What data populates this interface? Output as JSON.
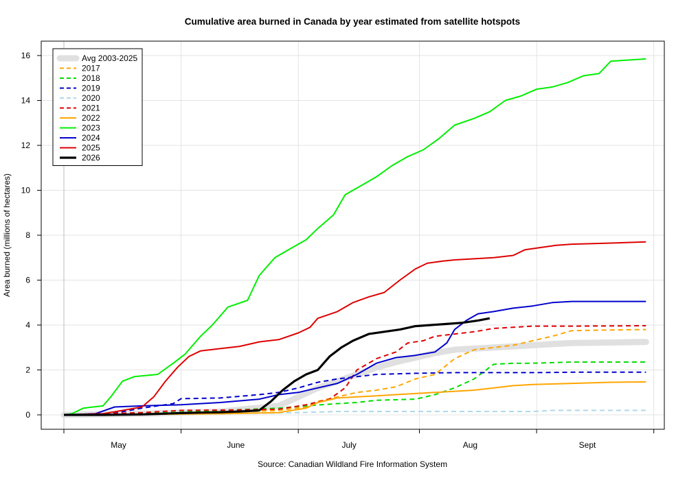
{
  "chart_data": {
    "type": "line",
    "title": "Cumulative area burned in Canada by year estimated from satellite hotspots",
    "ylabel": "Area burned (millions of hectares)",
    "source": "Source: Canadian Wildland Fire Information System",
    "xlim": [
      0,
      150
    ],
    "ylim": [
      -0.6,
      16.6
    ],
    "x_ticks": [
      0,
      30,
      60,
      91,
      121,
      151
    ],
    "x_tick_labels": [
      {
        "label": "May",
        "x": 14
      },
      {
        "label": "June",
        "x": 44
      },
      {
        "label": "July",
        "x": 73
      },
      {
        "label": "Aug",
        "x": 104
      },
      {
        "label": "Sept",
        "x": 134
      }
    ],
    "y_ticks": [
      0,
      2,
      4,
      6,
      8,
      10,
      12,
      14,
      16
    ],
    "x_units": "days since April 20",
    "legend_position": "top-left",
    "colors": {
      "avg": "#e0e0e0",
      "2017": "#ffa500",
      "2018": "#00dd00",
      "2019": "#0000cc",
      "2020": "#add8e6",
      "2021": "#dd0000",
      "2022": "#ffa500",
      "2023": "#00ee00",
      "2024": "#0000cc",
      "2025": "#dd0000",
      "2026": "#000000"
    },
    "series": [
      {
        "name": "Avg 2003-2025",
        "style": "thick",
        "color": "#e0e0e0",
        "points": [
          [
            0,
            0
          ],
          [
            20,
            0.05
          ],
          [
            40,
            0.15
          ],
          [
            55,
            0.4
          ],
          [
            60,
            0.8
          ],
          [
            65,
            1.2
          ],
          [
            70,
            1.5
          ],
          [
            75,
            1.8
          ],
          [
            80,
            2.1
          ],
          [
            85,
            2.35
          ],
          [
            90,
            2.55
          ],
          [
            95,
            2.75
          ],
          [
            100,
            2.9
          ],
          [
            105,
            2.95
          ],
          [
            110,
            3.0
          ],
          [
            115,
            3.05
          ],
          [
            120,
            3.1
          ],
          [
            125,
            3.15
          ],
          [
            130,
            3.2
          ],
          [
            140,
            3.22
          ],
          [
            149,
            3.25
          ]
        ]
      },
      {
        "name": "2017",
        "style": "dashed",
        "color": "#ffa500",
        "points": [
          [
            0,
            0
          ],
          [
            20,
            0.05
          ],
          [
            40,
            0.1
          ],
          [
            55,
            0.2
          ],
          [
            62,
            0.35
          ],
          [
            65,
            0.6
          ],
          [
            70,
            0.8
          ],
          [
            75,
            1.0
          ],
          [
            80,
            1.1
          ],
          [
            85,
            1.25
          ],
          [
            90,
            1.6
          ],
          [
            95,
            1.8
          ],
          [
            100,
            2.5
          ],
          [
            105,
            2.9
          ],
          [
            110,
            3.0
          ],
          [
            115,
            3.1
          ],
          [
            120,
            3.3
          ],
          [
            125,
            3.5
          ],
          [
            130,
            3.75
          ],
          [
            140,
            3.78
          ],
          [
            149,
            3.8
          ]
        ]
      },
      {
        "name": "2018",
        "style": "dashed",
        "color": "#00dd00",
        "points": [
          [
            0,
            0
          ],
          [
            20,
            0.05
          ],
          [
            40,
            0.2
          ],
          [
            55,
            0.3
          ],
          [
            62,
            0.4
          ],
          [
            70,
            0.5
          ],
          [
            75,
            0.55
          ],
          [
            80,
            0.65
          ],
          [
            90,
            0.7
          ],
          [
            95,
            0.9
          ],
          [
            100,
            1.2
          ],
          [
            105,
            1.6
          ],
          [
            110,
            2.25
          ],
          [
            115,
            2.3
          ],
          [
            120,
            2.3
          ],
          [
            130,
            2.35
          ],
          [
            140,
            2.35
          ],
          [
            149,
            2.35
          ]
        ]
      },
      {
        "name": "2019",
        "style": "dashed",
        "color": "#0000cc",
        "points": [
          [
            0,
            0
          ],
          [
            12,
            0.05
          ],
          [
            20,
            0.3
          ],
          [
            28,
            0.5
          ],
          [
            30,
            0.72
          ],
          [
            40,
            0.75
          ],
          [
            50,
            0.9
          ],
          [
            55,
            1.0
          ],
          [
            60,
            1.2
          ],
          [
            65,
            1.45
          ],
          [
            70,
            1.6
          ],
          [
            75,
            1.7
          ],
          [
            80,
            1.8
          ],
          [
            90,
            1.85
          ],
          [
            100,
            1.88
          ],
          [
            110,
            1.88
          ],
          [
            120,
            1.88
          ],
          [
            130,
            1.9
          ],
          [
            149,
            1.9
          ]
        ]
      },
      {
        "name": "2020",
        "style": "dashed",
        "color": "#add8e6",
        "points": [
          [
            0,
            0
          ],
          [
            20,
            0.02
          ],
          [
            40,
            0.05
          ],
          [
            60,
            0.1
          ],
          [
            70,
            0.15
          ],
          [
            80,
            0.15
          ],
          [
            100,
            0.15
          ],
          [
            110,
            0.15
          ],
          [
            120,
            0.15
          ],
          [
            125,
            0.2
          ],
          [
            135,
            0.2
          ],
          [
            149,
            0.2
          ]
        ]
      },
      {
        "name": "2021",
        "style": "dashed",
        "color": "#dd0000",
        "points": [
          [
            0,
            0
          ],
          [
            20,
            0.1
          ],
          [
            30,
            0.2
          ],
          [
            45,
            0.22
          ],
          [
            55,
            0.25
          ],
          [
            62,
            0.45
          ],
          [
            68,
            0.7
          ],
          [
            72,
            1.2
          ],
          [
            75,
            2.0
          ],
          [
            78,
            2.3
          ],
          [
            80,
            2.5
          ],
          [
            85,
            2.8
          ],
          [
            88,
            3.2
          ],
          [
            92,
            3.3
          ],
          [
            95,
            3.5
          ],
          [
            100,
            3.6
          ],
          [
            105,
            3.7
          ],
          [
            110,
            3.85
          ],
          [
            115,
            3.9
          ],
          [
            120,
            3.95
          ],
          [
            130,
            3.95
          ],
          [
            149,
            3.97
          ]
        ]
      },
      {
        "name": "2022",
        "style": "solid",
        "color": "#ffa500",
        "points": [
          [
            0,
            0
          ],
          [
            20,
            0.02
          ],
          [
            40,
            0.05
          ],
          [
            55,
            0.1
          ],
          [
            62,
            0.3
          ],
          [
            65,
            0.55
          ],
          [
            70,
            0.75
          ],
          [
            75,
            0.8
          ],
          [
            80,
            0.85
          ],
          [
            85,
            0.9
          ],
          [
            90,
            0.95
          ],
          [
            95,
            1.0
          ],
          [
            100,
            1.05
          ],
          [
            105,
            1.1
          ],
          [
            110,
            1.2
          ],
          [
            115,
            1.3
          ],
          [
            120,
            1.35
          ],
          [
            130,
            1.4
          ],
          [
            140,
            1.45
          ],
          [
            149,
            1.47
          ]
        ]
      },
      {
        "name": "2023",
        "style": "solid",
        "color": "#00ee00",
        "points": [
          [
            0,
            0
          ],
          [
            2,
            0.05
          ],
          [
            5,
            0.3
          ],
          [
            10,
            0.4
          ],
          [
            12,
            0.8
          ],
          [
            15,
            1.5
          ],
          [
            18,
            1.7
          ],
          [
            24,
            1.8
          ],
          [
            28,
            2.3
          ],
          [
            31,
            2.7
          ],
          [
            35,
            3.5
          ],
          [
            38,
            4.0
          ],
          [
            42,
            4.8
          ],
          [
            47,
            5.1
          ],
          [
            50,
            6.2
          ],
          [
            54,
            7.0
          ],
          [
            57,
            7.3
          ],
          [
            62,
            7.8
          ],
          [
            65,
            8.3
          ],
          [
            69,
            8.9
          ],
          [
            72,
            9.8
          ],
          [
            76,
            10.2
          ],
          [
            80,
            10.6
          ],
          [
            84,
            11.1
          ],
          [
            88,
            11.5
          ],
          [
            92,
            11.8
          ],
          [
            96,
            12.3
          ],
          [
            100,
            12.9
          ],
          [
            105,
            13.2
          ],
          [
            109,
            13.5
          ],
          [
            113,
            14.0
          ],
          [
            117,
            14.2
          ],
          [
            121,
            14.5
          ],
          [
            125,
            14.6
          ],
          [
            129,
            14.8
          ],
          [
            133,
            15.1
          ],
          [
            137,
            15.2
          ],
          [
            140,
            15.75
          ],
          [
            149,
            15.85
          ]
        ]
      },
      {
        "name": "2024",
        "style": "solid",
        "color": "#0000cc",
        "points": [
          [
            0,
            0
          ],
          [
            8,
            0.05
          ],
          [
            13,
            0.35
          ],
          [
            20,
            0.4
          ],
          [
            30,
            0.45
          ],
          [
            40,
            0.55
          ],
          [
            50,
            0.7
          ],
          [
            55,
            0.9
          ],
          [
            60,
            1.0
          ],
          [
            65,
            1.2
          ],
          [
            70,
            1.4
          ],
          [
            75,
            1.8
          ],
          [
            80,
            2.3
          ],
          [
            85,
            2.55
          ],
          [
            90,
            2.65
          ],
          [
            95,
            2.8
          ],
          [
            98,
            3.2
          ],
          [
            100,
            3.8
          ],
          [
            103,
            4.2
          ],
          [
            106,
            4.5
          ],
          [
            110,
            4.6
          ],
          [
            115,
            4.75
          ],
          [
            120,
            4.85
          ],
          [
            125,
            5.0
          ],
          [
            130,
            5.05
          ],
          [
            149,
            5.05
          ]
        ]
      },
      {
        "name": "2025",
        "style": "solid",
        "color": "#dd0000",
        "points": [
          [
            0,
            0
          ],
          [
            10,
            0.05
          ],
          [
            15,
            0.2
          ],
          [
            20,
            0.35
          ],
          [
            23,
            0.8
          ],
          [
            26,
            1.5
          ],
          [
            29,
            2.1
          ],
          [
            32,
            2.6
          ],
          [
            35,
            2.85
          ],
          [
            40,
            2.95
          ],
          [
            45,
            3.05
          ],
          [
            50,
            3.25
          ],
          [
            55,
            3.35
          ],
          [
            60,
            3.65
          ],
          [
            63,
            3.9
          ],
          [
            65,
            4.3
          ],
          [
            70,
            4.6
          ],
          [
            74,
            5.0
          ],
          [
            78,
            5.25
          ],
          [
            82,
            5.45
          ],
          [
            86,
            6.0
          ],
          [
            90,
            6.5
          ],
          [
            93,
            6.75
          ],
          [
            97,
            6.85
          ],
          [
            100,
            6.9
          ],
          [
            105,
            6.95
          ],
          [
            110,
            7.0
          ],
          [
            115,
            7.1
          ],
          [
            118,
            7.35
          ],
          [
            122,
            7.45
          ],
          [
            126,
            7.55
          ],
          [
            130,
            7.6
          ],
          [
            140,
            7.65
          ],
          [
            149,
            7.7
          ]
        ]
      },
      {
        "name": "2026",
        "style": "bold",
        "color": "#000000",
        "points": [
          [
            0,
            0
          ],
          [
            10,
            0
          ],
          [
            20,
            0.02
          ],
          [
            25,
            0.05
          ],
          [
            30,
            0.08
          ],
          [
            35,
            0.1
          ],
          [
            40,
            0.12
          ],
          [
            45,
            0.15
          ],
          [
            50,
            0.2
          ],
          [
            53,
            0.6
          ],
          [
            56,
            1.1
          ],
          [
            59,
            1.5
          ],
          [
            62,
            1.8
          ],
          [
            65,
            2.0
          ],
          [
            68,
            2.6
          ],
          [
            71,
            3.0
          ],
          [
            74,
            3.3
          ],
          [
            78,
            3.6
          ],
          [
            82,
            3.7
          ],
          [
            86,
            3.8
          ],
          [
            90,
            3.95
          ],
          [
            94,
            4.0
          ],
          [
            98,
            4.05
          ],
          [
            102,
            4.1
          ],
          [
            106,
            4.2
          ],
          [
            109,
            4.3
          ]
        ]
      }
    ]
  }
}
